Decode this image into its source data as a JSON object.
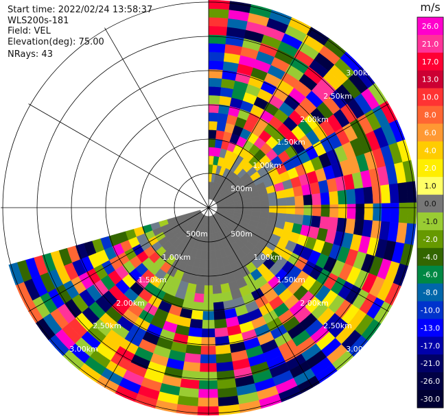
{
  "header": {
    "start_time": "Start time: 2022/02/24 13:58:37",
    "instrument": "WLS200s-181",
    "field": "Field: VEL",
    "elevation": "Elevation(deg): 75.00",
    "nrays": "NRays: 43"
  },
  "chart_data": {
    "type": "heatmap",
    "projection": "polar-ppi",
    "field": "VEL",
    "unit": "m/s",
    "elevation_deg": 75.0,
    "n_rays": 43,
    "ray_azimuth_start_deg": 0,
    "ray_azimuth_end_deg": 254,
    "range_rings": [
      "500m",
      "1.00km",
      "1.50km",
      "2.00km",
      "2.50km",
      "3.00km"
    ],
    "grid": true,
    "legend": "right",
    "colorbar": {
      "unit": "m/s",
      "ticks": [
        "26.0",
        "21.0",
        "17.0",
        "13.0",
        "10.0",
        "8.0",
        "6.0",
        "4.0",
        "2.0",
        "1.0",
        "0.0",
        "-1.0",
        "-2.0",
        "-4.0",
        "-6.0",
        "-8.0",
        "-10.0",
        "-13.0",
        "-17.0",
        "-21.0",
        "-26.0",
        "-30.0"
      ],
      "colors": [
        "#ff00cc",
        "#ff3399",
        "#ff0033",
        "#cc0033",
        "#ff3333",
        "#ff6633",
        "#ff9933",
        "#ffcc00",
        "#ffee00",
        "#ffff66",
        "#777777",
        "#99cc33",
        "#669900",
        "#336600",
        "#008844",
        "#0066aa",
        "#0033cc",
        "#0000ff",
        "#0000aa",
        "#000066",
        "#000044",
        "#000033"
      ]
    }
  }
}
